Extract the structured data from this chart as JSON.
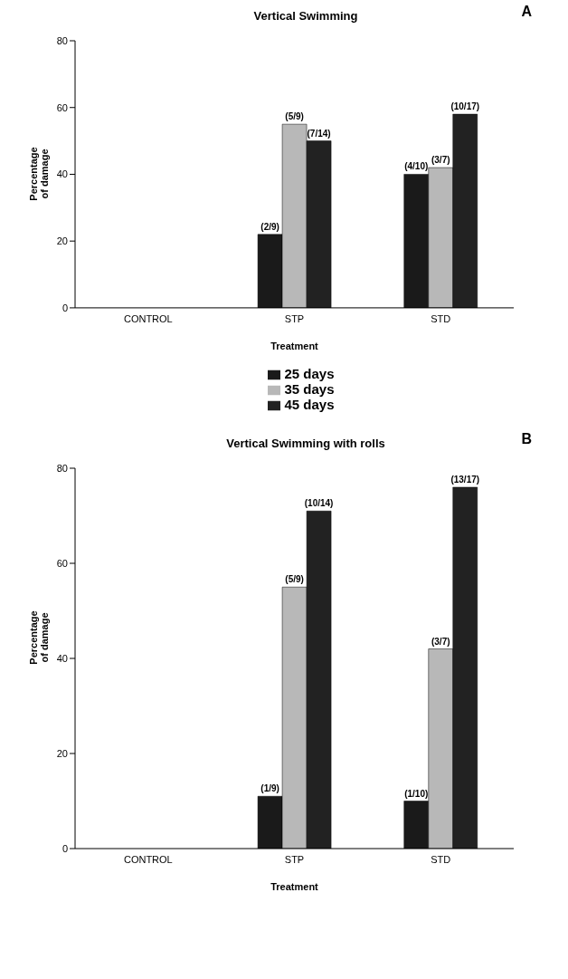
{
  "chart_data": [
    {
      "type": "bar",
      "title": "Vertical Swimming",
      "xlabel": "Treatment",
      "ylabel": "Percentage of damage",
      "annotations": [
        "A"
      ],
      "categories": [
        "CONTROL",
        "STP",
        "STD"
      ],
      "ylim": [
        0,
        80
      ],
      "yticks": [
        0,
        20,
        40,
        60,
        80
      ],
      "grid": false,
      "legend": "bottom",
      "series": [
        {
          "name": "25 days",
          "color": "#1a1a1a",
          "values": [
            0,
            22,
            40
          ],
          "value_labels": [
            null,
            "(2/9)",
            "(4/10)"
          ]
        },
        {
          "name": "35 days",
          "color": "#b8b8b8",
          "values": [
            0,
            55,
            42
          ],
          "value_labels": [
            null,
            "(5/9)",
            "(3/7)"
          ]
        },
        {
          "name": "45 days",
          "color": "#222222",
          "values": [
            0,
            50,
            58
          ],
          "value_labels": [
            null,
            "(7/14)",
            "(10/17)"
          ]
        }
      ]
    },
    {
      "type": "bar",
      "title": "Vertical Swimming with rolls",
      "xlabel": "Treatment",
      "ylabel": "Percentage of damage",
      "annotations": [
        "B"
      ],
      "categories": [
        "CONTROL",
        "STP",
        "STD"
      ],
      "ylim": [
        0,
        80
      ],
      "yticks": [
        0,
        20,
        40,
        60,
        80
      ],
      "grid": false,
      "legend": false,
      "series": [
        {
          "color": "#1a1a1a",
          "values": [
            0,
            11,
            10
          ],
          "value_labels": [
            null,
            "(1/9)",
            "(1/10)"
          ]
        },
        {
          "color": "#b8b8b8",
          "values": [
            0,
            55,
            42
          ],
          "value_labels": [
            null,
            "(5/9)",
            "(3/7)"
          ]
        },
        {
          "color": "#222222",
          "values": [
            0,
            71,
            76
          ],
          "value_labels": [
            null,
            "(10/14)",
            "(13/17)"
          ]
        }
      ]
    }
  ]
}
